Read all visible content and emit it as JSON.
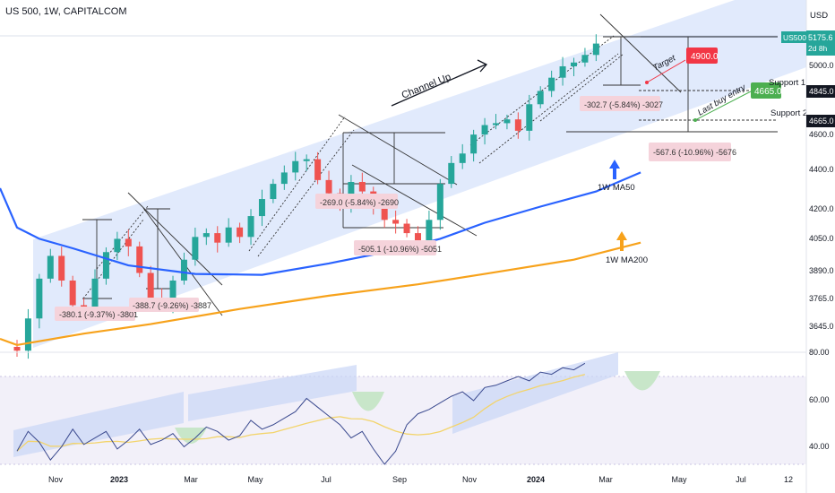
{
  "header": {
    "title": "US 500, 1W, CAPITALCOM"
  },
  "price_axis": {
    "currency": "USD",
    "ticks": [
      "5000.0",
      "4845.0",
      "4665.0",
      "4600.0",
      "4400.0",
      "4200.0",
      "4050.0",
      "3890.0",
      "3765.0",
      "3645.0"
    ],
    "symbol_badge": "US500",
    "last_price": "5175.6",
    "countdown": "2d 8h",
    "support1_value": "4845.0",
    "support2_value": "4665.0"
  },
  "rsi_axis": {
    "ticks": [
      "80.00",
      "60.00",
      "40.00"
    ]
  },
  "time_axis": {
    "ticks": [
      "Nov",
      "2023",
      "Mar",
      "May",
      "Jul",
      "Sep",
      "Nov",
      "2024",
      "Mar",
      "May",
      "Jul",
      "12"
    ]
  },
  "annotations": {
    "channel": "Channel Up",
    "target": "Target",
    "target_value": "4900.0",
    "support1": "Support 1",
    "support2": "Support 2",
    "last_buy": "Last buy entry",
    "last_buy_value": "4665.0",
    "ma50": "1W MA50",
    "ma200": "1W MA200",
    "drop1": "-380.1 (-9.37%) -3801",
    "drop2": "-388.7 (-9.26%) -3887",
    "drop3": "-269.0 (-5.84%) -2690",
    "drop4": "-505.1 (-10.96%) -5051",
    "drop5": "-302.7 (-5.84%) -3027",
    "drop6": "-567.6 (-10.96%) -5676"
  },
  "colors": {
    "bull": "#26a69a",
    "bear": "#ef5350",
    "ma50": "#2962ff",
    "ma200": "#f7a21b",
    "channel_fill": "#dce6fb",
    "rsi": "#3b4a8f",
    "rsi_ma": "#f3d46b",
    "target_red": "#f23645",
    "buy_green": "#4caf50",
    "measure_fill": "#f5d3db"
  },
  "chart_data": {
    "type": "candlestick",
    "timeframe": "1W",
    "price_range": [
      3560,
      5300
    ],
    "ohlc_path": [
      3600,
      3580,
      3750,
      3960,
      4080,
      3950,
      3820,
      3800,
      3960,
      4100,
      4170,
      4130,
      3990,
      3860,
      3830,
      3950,
      4060,
      4180,
      4200,
      4150,
      4230,
      4180,
      4290,
      4380,
      4460,
      4520,
      4580,
      4590,
      4480,
      4410,
      4360,
      4470,
      4420,
      4330,
      4270,
      4250,
      4200,
      4140,
      4270,
      4460,
      4570,
      4620,
      4720,
      4770,
      4780,
      4800,
      4740,
      4880,
      4950,
      5020,
      5080,
      5100,
      5140,
      5200
    ],
    "ma50_points": [
      [
        0,
        4230
      ],
      [
        2,
        4170
      ],
      [
        5,
        4120
      ],
      [
        10,
        4030
      ],
      [
        16,
        3985
      ],
      [
        22,
        3980
      ],
      [
        28,
        4040
      ],
      [
        34,
        4110
      ],
      [
        38,
        4170
      ],
      [
        42,
        4255
      ],
      [
        47,
        4340
      ],
      [
        52,
        4420
      ],
      [
        56,
        4520
      ]
    ],
    "ma200_points": [
      [
        0,
        3610
      ],
      [
        6,
        3670
      ],
      [
        12,
        3720
      ],
      [
        20,
        3800
      ],
      [
        28,
        3870
      ],
      [
        36,
        3930
      ],
      [
        42,
        3985
      ],
      [
        50,
        4060
      ],
      [
        56,
        4150
      ]
    ],
    "rsi_range": [
      30,
      90
    ],
    "rsi": [
      46,
      55,
      50,
      42,
      48,
      56,
      49,
      52,
      55,
      47,
      51,
      56,
      49,
      51,
      54,
      48,
      52,
      57,
      55,
      51,
      53,
      60,
      56,
      58,
      61,
      64,
      70,
      66,
      62,
      58,
      52,
      55,
      47,
      40,
      46,
      58,
      63,
      65,
      68,
      71,
      73,
      69,
      75,
      76,
      78,
      80,
      78,
      82,
      81,
      84,
      83,
      86
    ]
  }
}
